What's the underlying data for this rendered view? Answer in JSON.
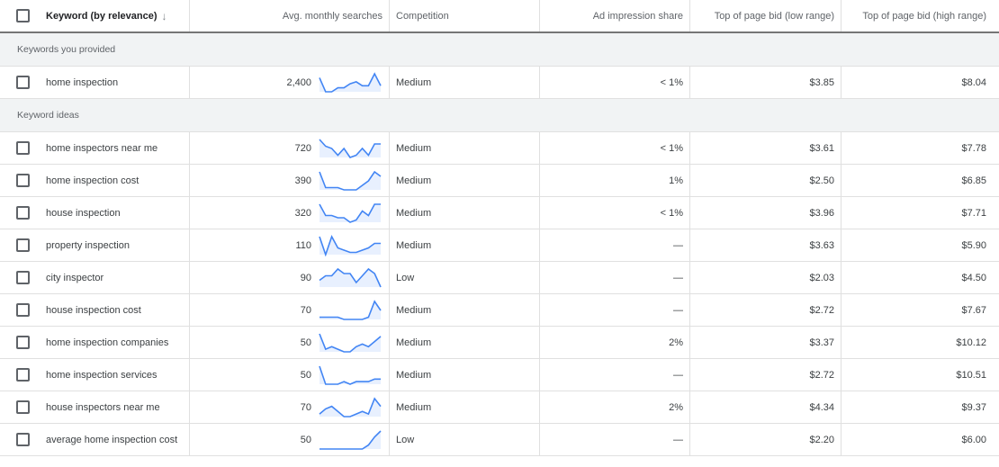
{
  "header": {
    "keyword": "Keyword (by relevance)",
    "sort_icon": "arrow-down-icon",
    "avg": "Avg. monthly searches",
    "competition": "Competition",
    "ais": "Ad impression share",
    "low": "Top of page bid (low range)",
    "high": "Top of page bid (high range)"
  },
  "colors": {
    "trend_line": "#4285f4",
    "trend_fill": "#e8f0fe"
  },
  "sections": [
    {
      "label": "Keywords you provided",
      "rows": [
        {
          "keyword": "home inspection",
          "avg": "2,400",
          "trend": [
            10,
            3,
            3,
            5,
            5,
            7,
            8,
            6,
            6,
            12,
            6
          ],
          "competition": "Medium",
          "ais": "< 1%",
          "low": "$3.85",
          "high": "$8.04"
        }
      ]
    },
    {
      "label": "Keyword ideas",
      "rows": [
        {
          "keyword": "home inspectors near me",
          "avg": "720",
          "trend": [
            10,
            7,
            6,
            3,
            6,
            2,
            3,
            6,
            3,
            8,
            8
          ],
          "competition": "Medium",
          "ais": "< 1%",
          "low": "$3.61",
          "high": "$7.78"
        },
        {
          "keyword": "home inspection cost",
          "avg": "390",
          "trend": [
            10,
            3,
            3,
            3,
            2,
            2,
            2,
            4,
            6,
            10,
            8
          ],
          "competition": "Medium",
          "ais": "1%",
          "low": "$2.50",
          "high": "$6.85"
        },
        {
          "keyword": "house inspection",
          "avg": "320",
          "trend": [
            10,
            5,
            5,
            4,
            4,
            2,
            3,
            7,
            5,
            10,
            10
          ],
          "competition": "Medium",
          "ais": "< 1%",
          "low": "$3.96",
          "high": "$7.71"
        },
        {
          "keyword": "property inspection",
          "avg": "110",
          "trend": [
            10,
            2,
            10,
            5,
            4,
            3,
            3,
            4,
            5,
            7,
            7
          ],
          "competition": "Medium",
          "ais": "—",
          "low": "$3.63",
          "high": "$5.90"
        },
        {
          "keyword": "city inspector",
          "avg": "90",
          "trend": [
            5,
            7,
            7,
            10,
            8,
            8,
            4,
            7,
            10,
            8,
            2
          ],
          "competition": "Low",
          "ais": "—",
          "low": "$2.03",
          "high": "$4.50"
        },
        {
          "keyword": "house inspection cost",
          "avg": "70",
          "trend": [
            3,
            3,
            3,
            3,
            2,
            2,
            2,
            2,
            3,
            10,
            6
          ],
          "competition": "Medium",
          "ais": "—",
          "low": "$2.72",
          "high": "$7.67"
        },
        {
          "keyword": "home inspection companies",
          "avg": "50",
          "trend": [
            10,
            4,
            5,
            4,
            3,
            3,
            5,
            6,
            5,
            7,
            9
          ],
          "competition": "Medium",
          "ais": "2%",
          "low": "$3.37",
          "high": "$10.12"
        },
        {
          "keyword": "home inspection services",
          "avg": "50",
          "trend": [
            10,
            3,
            3,
            3,
            4,
            3,
            4,
            4,
            4,
            5,
            5
          ],
          "competition": "Medium",
          "ais": "—",
          "low": "$2.72",
          "high": "$10.51"
        },
        {
          "keyword": "house inspectors near me",
          "avg": "70",
          "trend": [
            4,
            6,
            7,
            5,
            3,
            3,
            4,
            5,
            4,
            10,
            7
          ],
          "competition": "Medium",
          "ais": "2%",
          "low": "$4.34",
          "high": "$9.37"
        },
        {
          "keyword": "average home inspection cost",
          "avg": "50",
          "trend": [
            1,
            1,
            1,
            1,
            1,
            1,
            1,
            1,
            3,
            7,
            10
          ],
          "competition": "Low",
          "ais": "—",
          "low": "$2.20",
          "high": "$6.00"
        }
      ]
    }
  ]
}
